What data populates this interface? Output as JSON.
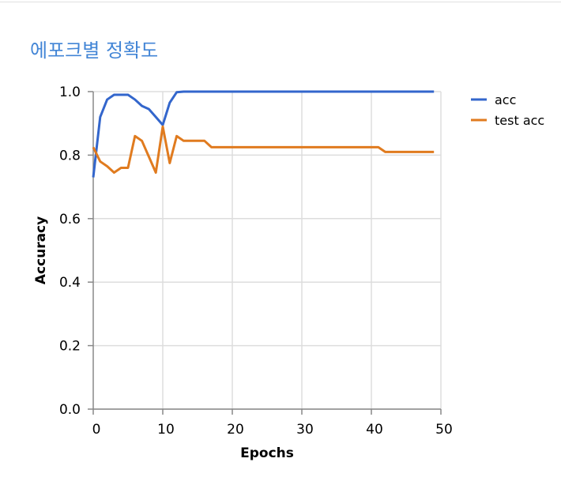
{
  "chart_data": {
    "type": "line",
    "title": "에포크별 정확도",
    "xlabel": "Epochs",
    "ylabel": "Accuracy",
    "xlim": [
      0,
      50
    ],
    "ylim": [
      0,
      1
    ],
    "xticks": [
      0,
      10,
      20,
      30,
      40,
      50
    ],
    "yticks": [
      0.0,
      0.2,
      0.4,
      0.6,
      0.8,
      1.0
    ],
    "ytick_labels": [
      "0.0",
      "0.2",
      "0.4",
      "0.6",
      "0.8",
      "1.0"
    ],
    "grid": true,
    "legend_position": "right",
    "series": [
      {
        "name": "acc",
        "color": "#3366cc",
        "x": [
          0,
          1,
          2,
          3,
          4,
          5,
          6,
          7,
          8,
          9,
          10,
          11,
          12,
          13,
          14,
          15,
          16,
          17,
          18,
          19,
          20,
          21,
          22,
          23,
          24,
          25,
          26,
          27,
          28,
          29,
          30,
          31,
          32,
          33,
          34,
          35,
          36,
          37,
          38,
          39,
          40,
          41,
          42,
          43,
          44,
          45,
          46,
          47,
          48,
          49
        ],
        "values": [
          0.73,
          0.92,
          0.975,
          0.99,
          0.99,
          0.99,
          0.975,
          0.955,
          0.945,
          0.92,
          0.895,
          0.965,
          0.998,
          1,
          1,
          1,
          1,
          1,
          1,
          1,
          1,
          1,
          1,
          1,
          1,
          1,
          1,
          1,
          1,
          1,
          1,
          1,
          1,
          1,
          1,
          1,
          1,
          1,
          1,
          1,
          1,
          1,
          1,
          1,
          1,
          1,
          1,
          1,
          1,
          1
        ]
      },
      {
        "name": "test acc",
        "color": "#e07b1f",
        "x": [
          0,
          1,
          2,
          3,
          4,
          5,
          6,
          7,
          8,
          9,
          10,
          11,
          12,
          13,
          14,
          15,
          16,
          17,
          18,
          19,
          20,
          21,
          22,
          23,
          24,
          25,
          26,
          27,
          28,
          29,
          30,
          31,
          32,
          33,
          34,
          35,
          36,
          37,
          38,
          39,
          40,
          41,
          42,
          43,
          44,
          45,
          46,
          47,
          48,
          49
        ],
        "values": [
          0.825,
          0.78,
          0.765,
          0.745,
          0.76,
          0.76,
          0.86,
          0.845,
          0.795,
          0.745,
          0.89,
          0.775,
          0.86,
          0.845,
          0.845,
          0.845,
          0.845,
          0.825,
          0.825,
          0.825,
          0.825,
          0.825,
          0.825,
          0.825,
          0.825,
          0.825,
          0.825,
          0.825,
          0.825,
          0.825,
          0.825,
          0.825,
          0.825,
          0.825,
          0.825,
          0.825,
          0.825,
          0.825,
          0.825,
          0.825,
          0.825,
          0.825,
          0.81,
          0.81,
          0.81,
          0.81,
          0.81,
          0.81,
          0.81,
          0.81
        ]
      }
    ]
  }
}
